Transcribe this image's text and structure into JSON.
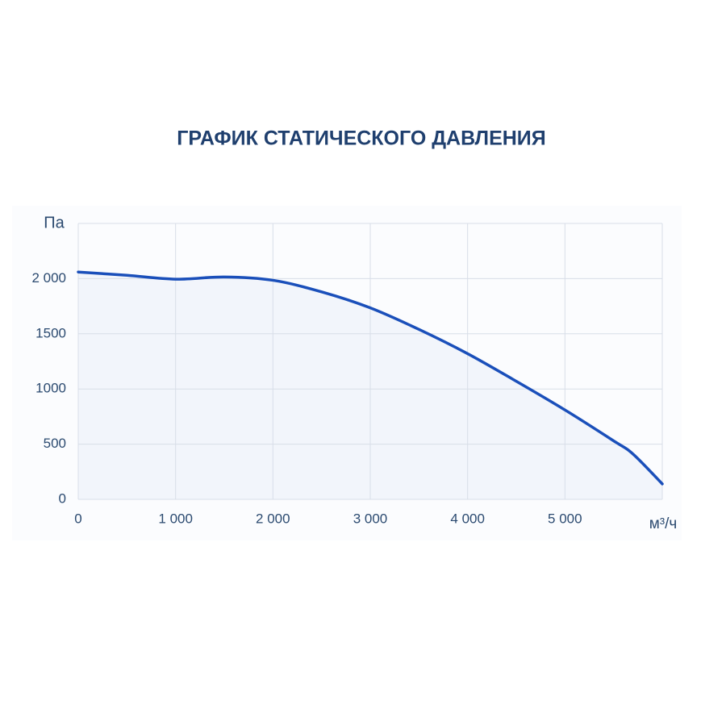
{
  "chart_data": {
    "type": "line",
    "title": "ГРАФИК СТАТИЧЕСКОГО ДАВЛЕНИЯ",
    "y_label": "Па",
    "x_label": "м³/ч",
    "x": [
      0,
      500,
      1000,
      1500,
      2000,
      2500,
      3000,
      3500,
      4000,
      4500,
      5000,
      5500,
      5700,
      6000
    ],
    "values": [
      2060,
      2030,
      1995,
      2015,
      1985,
      1880,
      1735,
      1540,
      1320,
      1070,
      810,
      530,
      410,
      140
    ],
    "color": "#1a4fba",
    "fill": "#f2f5fb",
    "xlim": [
      0,
      6000
    ],
    "xticks": [
      0,
      {
        "value": 1000,
        "label": "1 000"
      },
      {
        "value": 2000,
        "label": "2 000"
      },
      {
        "value": 3000,
        "label": "3 000"
      },
      {
        "value": 4000,
        "label": "4 000"
      },
      {
        "value": 5000,
        "label": "5 000"
      }
    ],
    "ylim": [
      0,
      2500
    ],
    "yticks": [
      0,
      500,
      1000,
      1500,
      {
        "value": 2000,
        "label": "2 000"
      }
    ],
    "grid": true
  }
}
